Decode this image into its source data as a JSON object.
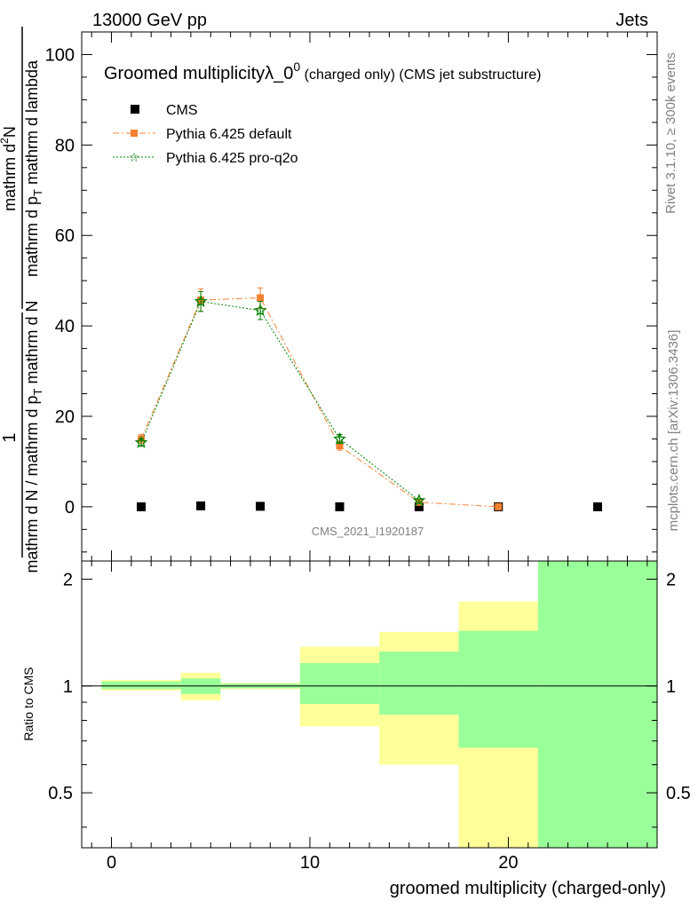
{
  "header": {
    "left": "13000 GeV pp",
    "right": "Jets"
  },
  "side_labels": {
    "rivet": "Rivet 3.1.10, ≥ 300k events",
    "mcplots": "mcplots.cern.ch [arXiv:1306.3436]"
  },
  "chart_data": [
    {
      "type": "scatter",
      "title": "Groomed multiplicityλ_0",
      "title_superscript": "0",
      "title_suffix": " (charged only) (CMS jet substructure)",
      "ylabel_numerator": "mathrm d²N",
      "ylabel_numerator_base": "mathrm d",
      "ylabel_numerator_sup": "2",
      "ylabel_numerator_tail": "N",
      "ylabel_denominator": "mathrm d p",
      "ylabel_denominator_sub": "T",
      "ylabel_denominator_tail": " mathrm d lambda",
      "ylabel_prefix_numerator": "1",
      "ylabel_prefix_denominator": "mathrm d N / mathrm d p",
      "ylabel_prefix_denominator_sub": "T",
      "ylabel_prefix_denominator_tail": " mathrm d N",
      "watermark": "CMS_2021_I1920187",
      "xlim": [
        -1.5,
        27.5
      ],
      "ylim": [
        -12,
        105
      ],
      "yticks": [
        0,
        20,
        40,
        60,
        80,
        100
      ],
      "legend_position": "top-left",
      "series": [
        {
          "name": "CMS",
          "color": "#000000",
          "marker": "square",
          "x": [
            1.5,
            4.5,
            7.5,
            11.5,
            15.5,
            19.5,
            24.5
          ],
          "y": [
            0.0,
            0.2,
            0.1,
            0.0,
            0.0,
            0.0,
            0.0
          ]
        },
        {
          "name": "Pythia 6.425 default",
          "color": "#f5802f",
          "marker": "square",
          "line": "dashdot",
          "x": [
            1.5,
            4.5,
            7.5,
            11.5,
            15.5,
            19.5
          ],
          "y": [
            15.0,
            45.7,
            46.2,
            13.5,
            1.0,
            0.0
          ],
          "yerr": [
            1.0,
            2.5,
            2.2,
            1.0,
            0.3,
            0.1
          ]
        },
        {
          "name": "Pythia 6.425 pro-q2o",
          "color": "#008000",
          "marker": "star",
          "line": "dotted",
          "x": [
            1.5,
            4.5,
            7.5,
            11.5,
            15.5
          ],
          "y": [
            14.2,
            45.4,
            43.4,
            15.0,
            1.4
          ],
          "yerr": [
            0.8,
            2.2,
            2.0,
            1.0,
            0.3
          ]
        }
      ]
    },
    {
      "type": "area",
      "xlabel": "groomed multiplicity (charged-only)",
      "ylabel": "Ratio to CMS",
      "xlim": [
        -1.5,
        27.5
      ],
      "ylim": [
        0.35,
        2.25
      ],
      "xticks": [
        0,
        10,
        20
      ],
      "yticks": [
        0.5,
        1,
        2
      ],
      "reference_line": 1,
      "bands": [
        {
          "x0": -0.5,
          "x1": 3.5,
          "yellow": [
            0.97,
            1.04
          ],
          "green": [
            0.98,
            1.03
          ]
        },
        {
          "x0": 3.5,
          "x1": 5.5,
          "yellow": [
            0.91,
            1.09
          ],
          "green": [
            0.95,
            1.05
          ]
        },
        {
          "x0": 5.5,
          "x1": 9.5,
          "yellow": [
            0.98,
            1.02
          ],
          "green": [
            0.985,
            1.015
          ]
        },
        {
          "x0": 9.5,
          "x1": 13.5,
          "yellow": [
            0.77,
            1.29
          ],
          "green": [
            0.89,
            1.16
          ]
        },
        {
          "x0": 13.5,
          "x1": 17.5,
          "yellow": [
            0.6,
            1.42
          ],
          "green": [
            0.83,
            1.25
          ]
        },
        {
          "x0": 17.5,
          "x1": 21.5,
          "yellow": [
            0.35,
            1.73
          ],
          "green": [
            0.67,
            1.43
          ]
        },
        {
          "x0": 21.5,
          "x1": 27.5,
          "yellow": [
            0.35,
            2.25
          ],
          "green": [
            0.35,
            2.25
          ]
        }
      ],
      "colors": {
        "yellow": "#ffff99",
        "green": "#99ff99"
      }
    }
  ]
}
